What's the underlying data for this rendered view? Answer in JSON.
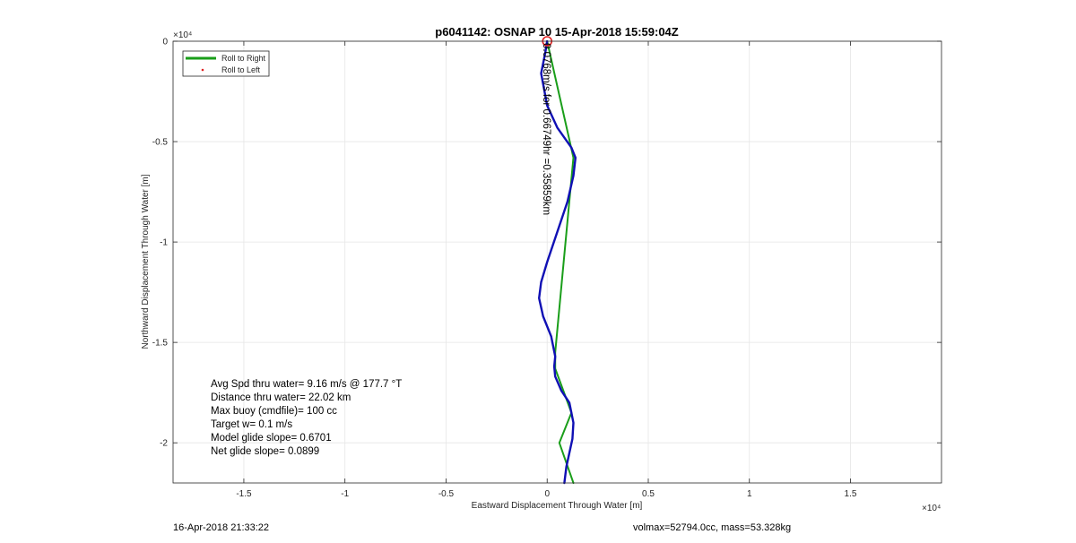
{
  "chart_data": {
    "type": "line",
    "title": "p6041142: OSNAP 10 15-Apr-2018 15:59:04Z",
    "xlabel": "Eastward Displacement Through Water [m]",
    "ylabel": "Northward Displacement Through Water [m]",
    "x_exponent": "×10⁴",
    "y_exponent": "×10⁴",
    "xlim": [
      -1.85,
      1.95
    ],
    "ylim": [
      -2.2,
      0
    ],
    "x_ticks": [
      -1.5,
      -1,
      -0.5,
      0,
      0.5,
      1,
      1.5
    ],
    "x_tick_labels": [
      "-1.5",
      "-1",
      "-0.5",
      "0",
      "0.5",
      "1",
      "1.5"
    ],
    "y_ticks": [
      0,
      -0.5,
      -1,
      -1.5,
      -2
    ],
    "y_tick_labels": [
      "0",
      "-0.5",
      "-1",
      "-1.5",
      "-2"
    ],
    "grid": true,
    "legend_position": "top-left",
    "legend": [
      {
        "label": "Roll to Right",
        "color": "#1a9e1a",
        "style": "line"
      },
      {
        "label": "Roll to Left",
        "color": "#e02020",
        "style": "dot"
      }
    ],
    "series": [
      {
        "name": "Roll to Right",
        "color": "#1a9e1a",
        "x": [
          0,
          0.13,
          0.04,
          0.04,
          0.12,
          0.06,
          0.13
        ],
        "y": [
          0,
          -0.58,
          -1.55,
          -1.63,
          -1.85,
          -2.0,
          -2.2
        ]
      },
      {
        "color": "#1010b4",
        "x": [
          0,
          -0.01,
          -0.03,
          0.0,
          0.05,
          0.12,
          0.14,
          0.13,
          0.1,
          0.05,
          0.0,
          -0.03,
          -0.04,
          -0.02,
          0.02,
          0.04,
          0.035,
          0.04,
          0.07,
          0.11,
          0.13,
          0.125,
          0.11,
          0.095,
          0.085
        ],
        "y": [
          0,
          -0.06,
          -0.16,
          -0.32,
          -0.43,
          -0.53,
          -0.58,
          -0.67,
          -0.8,
          -0.95,
          -1.1,
          -1.2,
          -1.28,
          -1.37,
          -1.47,
          -1.57,
          -1.62,
          -1.67,
          -1.74,
          -1.8,
          -1.9,
          -1.98,
          -2.05,
          -2.12,
          -2.2
        ]
      }
    ],
    "start_marker": {
      "x": 0,
      "y": 0,
      "color": "#e02020"
    },
    "annotation": {
      "text": "0.0768m/s for 0.66749hr =0.35859km",
      "color": "#000000"
    },
    "stats": [
      "Avg Spd thru water=  9.16 m/s @ 177.7 °T",
      "Distance thru water= 22.02 km",
      "Max buoy (cmdfile)= 100 cc",
      "Target w= 0.1 m/s",
      "Model glide slope= 0.6701",
      "Net glide slope= 0.0899"
    ]
  },
  "footer": {
    "timestamp": "16-Apr-2018 21:33:22",
    "vol_mass": "volmax=52794.0cc, mass=53.328kg"
  }
}
